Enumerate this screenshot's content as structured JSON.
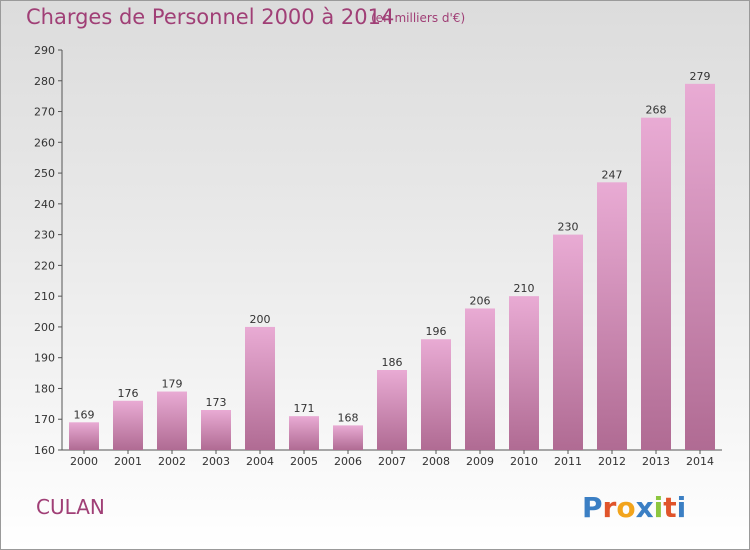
{
  "header": {
    "title": "Charges de Personnel 2000 à 2014",
    "subtitle": "(en milliers d'€)"
  },
  "footer": {
    "commune": "CULAN",
    "brand": "Proxiti"
  },
  "colors": {
    "text_accent": "#a03f76",
    "bar_top": "#e8a9d2",
    "bar_bottom": "#b06a92"
  },
  "chart_data": {
    "type": "bar",
    "title": "Charges de Personnel 2000 à 2014",
    "subtitle": "(en milliers d'€)",
    "categories": [
      "2000",
      "2001",
      "2002",
      "2003",
      "2004",
      "2005",
      "2006",
      "2007",
      "2008",
      "2009",
      "2010",
      "2011",
      "2012",
      "2013",
      "2014"
    ],
    "values": [
      169,
      176,
      179,
      173,
      200,
      171,
      168,
      186,
      196,
      206,
      210,
      230,
      247,
      268,
      279
    ],
    "ylim": [
      160,
      290
    ],
    "yticks": [
      160,
      170,
      180,
      190,
      200,
      210,
      220,
      230,
      240,
      250,
      260,
      270,
      280,
      290
    ],
    "grid": false,
    "data_labels": true
  }
}
